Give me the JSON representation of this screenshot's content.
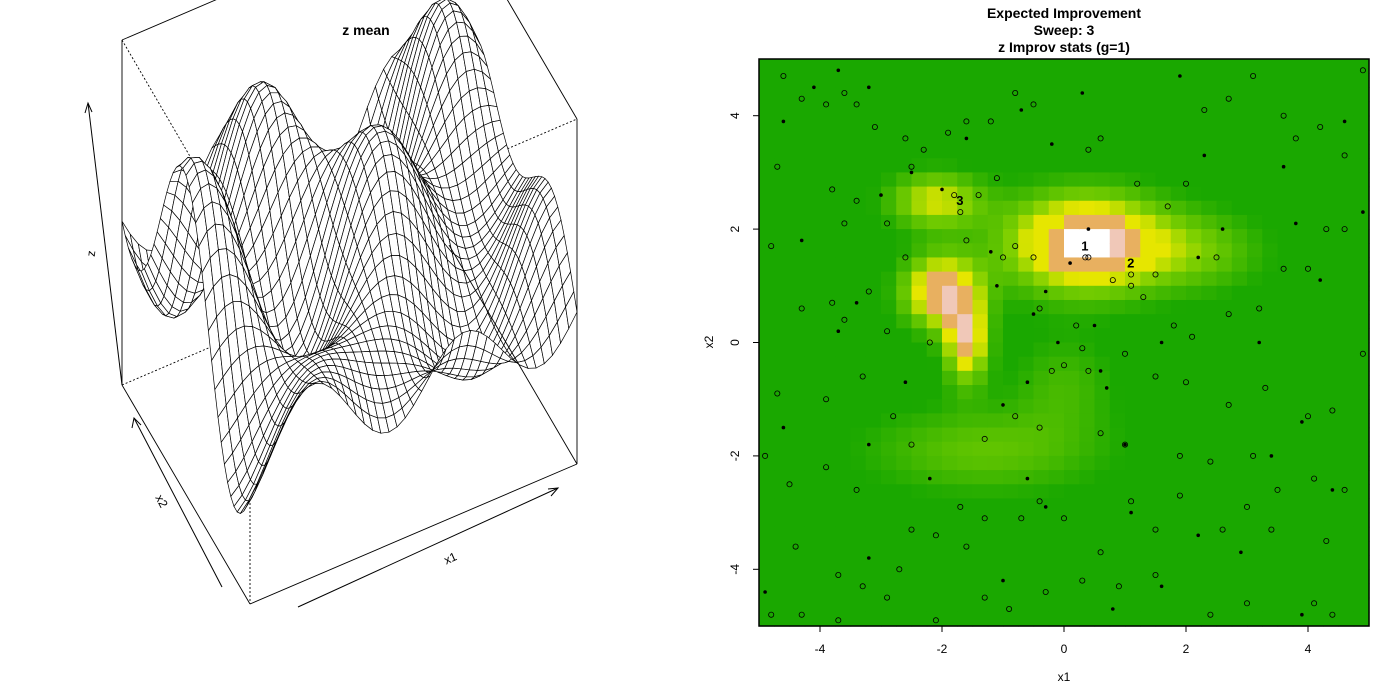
{
  "chart_data": [
    {
      "type": "surface",
      "title": "z mean",
      "xlabel": "x1",
      "ylabel": "x2",
      "zlabel": "z",
      "domain": {
        "x1": [
          -5,
          5
        ],
        "x2": [
          -5,
          5
        ]
      },
      "mesh_lines": 40,
      "colors": {
        "mesh": "#000000",
        "box": "#000000",
        "background": "#ffffff"
      }
    },
    {
      "type": "heatmap",
      "title_lines": [
        "Expected Improvement",
        "Sweep: 3",
        "z Improv stats (g=1)"
      ],
      "xlabel": "x1",
      "ylabel": "x2",
      "xlim": [
        -5,
        5
      ],
      "ylim": [
        -5,
        5
      ],
      "xticks": [
        -4,
        -2,
        0,
        2,
        4
      ],
      "yticks": [
        -4,
        -2,
        0,
        2,
        4
      ],
      "grid": false,
      "legend": "none",
      "color_scale": [
        "#1aa800",
        "#7fd000",
        "#e6e600",
        "#e8b060",
        "#f0c8b8",
        "#ffffff"
      ],
      "hotspots": [
        {
          "x1": 0.35,
          "x2": 1.75,
          "amp": 1.0,
          "sx": 0.9,
          "sy": 0.6
        },
        {
          "x1": -2.0,
          "x2": 0.9,
          "amp": 0.85,
          "sx": 0.45,
          "sy": 0.45
        },
        {
          "x1": -1.6,
          "x2": 0.0,
          "amp": 0.75,
          "sx": 0.25,
          "sy": 0.5
        },
        {
          "x1": -2.1,
          "x2": 2.5,
          "amp": 0.55,
          "sx": 0.55,
          "sy": 0.35
        },
        {
          "x1": 2.2,
          "x2": 1.6,
          "amp": 0.3,
          "sx": 0.8,
          "sy": 0.5
        },
        {
          "x1": -1.3,
          "x2": -1.9,
          "amp": 0.3,
          "sx": 1.4,
          "sy": 0.55
        },
        {
          "x1": 0.0,
          "x2": -0.7,
          "amp": 0.2,
          "sx": 0.6,
          "sy": 0.6
        }
      ],
      "numbered_points": [
        {
          "label": "1",
          "x1": 0.35,
          "x2": 1.5
        },
        {
          "label": "2",
          "x1": 1.1,
          "x2": 1.2
        },
        {
          "label": "3",
          "x1": -1.7,
          "x2": 2.3
        }
      ],
      "open_points": [
        [
          -4.6,
          4.7
        ],
        [
          -4.3,
          4.3
        ],
        [
          -3.9,
          4.2
        ],
        [
          -3.6,
          4.4
        ],
        [
          -3.4,
          4.2
        ],
        [
          -3.1,
          3.8
        ],
        [
          -2.6,
          3.6
        ],
        [
          -2.3,
          3.4
        ],
        [
          -1.9,
          3.7
        ],
        [
          -1.6,
          3.9
        ],
        [
          -1.2,
          3.9
        ],
        [
          -0.8,
          4.4
        ],
        [
          -0.5,
          4.2
        ],
        [
          0.4,
          3.4
        ],
        [
          0.6,
          3.6
        ],
        [
          1.2,
          2.8
        ],
        [
          1.7,
          2.4
        ],
        [
          2.0,
          2.8
        ],
        [
          2.3,
          4.1
        ],
        [
          2.7,
          4.3
        ],
        [
          3.1,
          4.7
        ],
        [
          3.6,
          4.0
        ],
        [
          3.8,
          3.6
        ],
        [
          4.2,
          3.8
        ],
        [
          4.6,
          3.3
        ],
        [
          4.9,
          4.8
        ],
        [
          -4.7,
          3.1
        ],
        [
          -3.8,
          2.7
        ],
        [
          -3.4,
          2.5
        ],
        [
          -2.9,
          2.1
        ],
        [
          -2.5,
          3.1
        ],
        [
          -1.8,
          2.6
        ],
        [
          -1.4,
          2.6
        ],
        [
          -1.1,
          2.9
        ],
        [
          -0.8,
          1.7
        ],
        [
          -0.5,
          1.5
        ],
        [
          0.4,
          1.5
        ],
        [
          0.8,
          1.1
        ],
        [
          1.1,
          1.0
        ],
        [
          1.3,
          0.8
        ],
        [
          1.5,
          1.2
        ],
        [
          1.8,
          0.3
        ],
        [
          2.1,
          0.1
        ],
        [
          2.5,
          1.5
        ],
        [
          2.7,
          0.5
        ],
        [
          3.2,
          0.6
        ],
        [
          3.6,
          1.3
        ],
        [
          4.0,
          1.3
        ],
        [
          4.3,
          2.0
        ],
        [
          4.6,
          2.0
        ],
        [
          -4.8,
          1.7
        ],
        [
          -4.3,
          0.6
        ],
        [
          -3.8,
          0.7
        ],
        [
          -3.6,
          0.4
        ],
        [
          -3.2,
          0.9
        ],
        [
          -2.9,
          0.2
        ],
        [
          -2.2,
          0.0
        ],
        [
          -1.6,
          1.8
        ],
        [
          -1.0,
          1.5
        ],
        [
          -0.4,
          0.6
        ],
        [
          0.2,
          0.3
        ],
        [
          0.3,
          -0.1
        ],
        [
          0.0,
          -0.4
        ],
        [
          -0.2,
          -0.5
        ],
        [
          0.4,
          -0.5
        ],
        [
          1.0,
          -0.2
        ],
        [
          1.5,
          -0.6
        ],
        [
          2.0,
          -0.7
        ],
        [
          2.7,
          -1.1
        ],
        [
          3.3,
          -0.8
        ],
        [
          4.0,
          -1.3
        ],
        [
          4.4,
          -1.2
        ],
        [
          4.9,
          -0.2
        ],
        [
          -4.7,
          -0.9
        ],
        [
          -3.9,
          -1.0
        ],
        [
          -3.3,
          -0.6
        ],
        [
          -2.8,
          -1.3
        ],
        [
          -2.5,
          -1.8
        ],
        [
          -1.3,
          -1.7
        ],
        [
          -0.8,
          -1.3
        ],
        [
          -0.4,
          -1.5
        ],
        [
          0.6,
          -1.6
        ],
        [
          1.0,
          -1.8
        ],
        [
          1.9,
          -2.0
        ],
        [
          2.4,
          -2.1
        ],
        [
          3.1,
          -2.0
        ],
        [
          3.5,
          -2.6
        ],
        [
          4.1,
          -2.4
        ],
        [
          -4.9,
          -2.0
        ],
        [
          -4.5,
          -2.5
        ],
        [
          -3.9,
          -2.2
        ],
        [
          -3.4,
          -2.6
        ],
        [
          -2.5,
          -3.3
        ],
        [
          -1.7,
          -2.9
        ],
        [
          -1.3,
          -3.1
        ],
        [
          -0.7,
          -3.1
        ],
        [
          -0.4,
          -2.8
        ],
        [
          0.0,
          -3.1
        ],
        [
          0.6,
          -3.7
        ],
        [
          1.1,
          -2.8
        ],
        [
          1.5,
          -3.3
        ],
        [
          1.9,
          -2.7
        ],
        [
          2.6,
          -3.3
        ],
        [
          3.0,
          -2.9
        ],
        [
          3.4,
          -3.3
        ],
        [
          4.3,
          -3.5
        ],
        [
          -4.4,
          -3.6
        ],
        [
          -3.7,
          -4.1
        ],
        [
          -3.3,
          -4.3
        ],
        [
          -2.7,
          -4.0
        ],
        [
          -2.1,
          -3.4
        ],
        [
          -1.6,
          -3.6
        ],
        [
          -0.9,
          -4.7
        ],
        [
          -0.3,
          -4.4
        ],
        [
          0.3,
          -4.2
        ],
        [
          0.9,
          -4.3
        ],
        [
          1.5,
          -4.1
        ],
        [
          2.4,
          -4.8
        ],
        [
          3.0,
          -4.6
        ],
        [
          4.1,
          -4.6
        ],
        [
          -4.8,
          -4.8
        ],
        [
          -4.3,
          -4.8
        ],
        [
          -3.7,
          -4.9
        ],
        [
          -2.9,
          -4.5
        ],
        [
          -2.1,
          -4.9
        ],
        [
          -1.3,
          -4.5
        ],
        [
          4.4,
          -4.8
        ],
        [
          4.6,
          -2.6
        ],
        [
          -2.6,
          1.5
        ],
        [
          -3.6,
          2.1
        ]
      ],
      "filled_points": [
        [
          -4.6,
          3.9
        ],
        [
          -4.1,
          4.5
        ],
        [
          -3.7,
          4.8
        ],
        [
          -3.2,
          4.5
        ],
        [
          -2.5,
          3.0
        ],
        [
          -2.0,
          2.7
        ],
        [
          -1.6,
          3.6
        ],
        [
          -0.7,
          4.1
        ],
        [
          -0.2,
          3.5
        ],
        [
          0.3,
          4.4
        ],
        [
          1.9,
          4.7
        ],
        [
          2.3,
          3.3
        ],
        [
          3.6,
          3.1
        ],
        [
          4.6,
          3.9
        ],
        [
          4.9,
          2.3
        ],
        [
          -4.3,
          1.8
        ],
        [
          -3.0,
          2.6
        ],
        [
          -1.2,
          1.6
        ],
        [
          0.1,
          1.4
        ],
        [
          0.4,
          2.0
        ],
        [
          2.6,
          2.0
        ],
        [
          2.2,
          1.5
        ],
        [
          3.8,
          2.1
        ],
        [
          4.2,
          1.1
        ],
        [
          -3.7,
          0.2
        ],
        [
          -3.4,
          0.7
        ],
        [
          -1.1,
          1.0
        ],
        [
          -0.3,
          0.9
        ],
        [
          -0.1,
          0.0
        ],
        [
          0.6,
          -0.5
        ],
        [
          1.6,
          0.0
        ],
        [
          3.2,
          0.0
        ],
        [
          -2.6,
          -0.7
        ],
        [
          -0.6,
          -0.7
        ],
        [
          0.7,
          -0.8
        ],
        [
          -1.0,
          -1.1
        ],
        [
          -3.2,
          -1.8
        ],
        [
          -4.6,
          -1.5
        ],
        [
          3.9,
          -1.4
        ],
        [
          1.0,
          -1.8
        ],
        [
          -2.2,
          -2.4
        ],
        [
          -0.6,
          -2.4
        ],
        [
          3.4,
          -2.0
        ],
        [
          4.4,
          -2.6
        ],
        [
          -0.3,
          -2.9
        ],
        [
          1.1,
          -3.0
        ],
        [
          2.2,
          -3.4
        ],
        [
          2.9,
          -3.7
        ],
        [
          -3.2,
          -3.8
        ],
        [
          -1.0,
          -4.2
        ],
        [
          1.6,
          -4.3
        ],
        [
          0.8,
          -4.7
        ],
        [
          -4.9,
          -4.4
        ],
        [
          3.9,
          -4.8
        ],
        [
          -0.5,
          0.5
        ],
        [
          0.5,
          0.3
        ]
      ]
    }
  ]
}
